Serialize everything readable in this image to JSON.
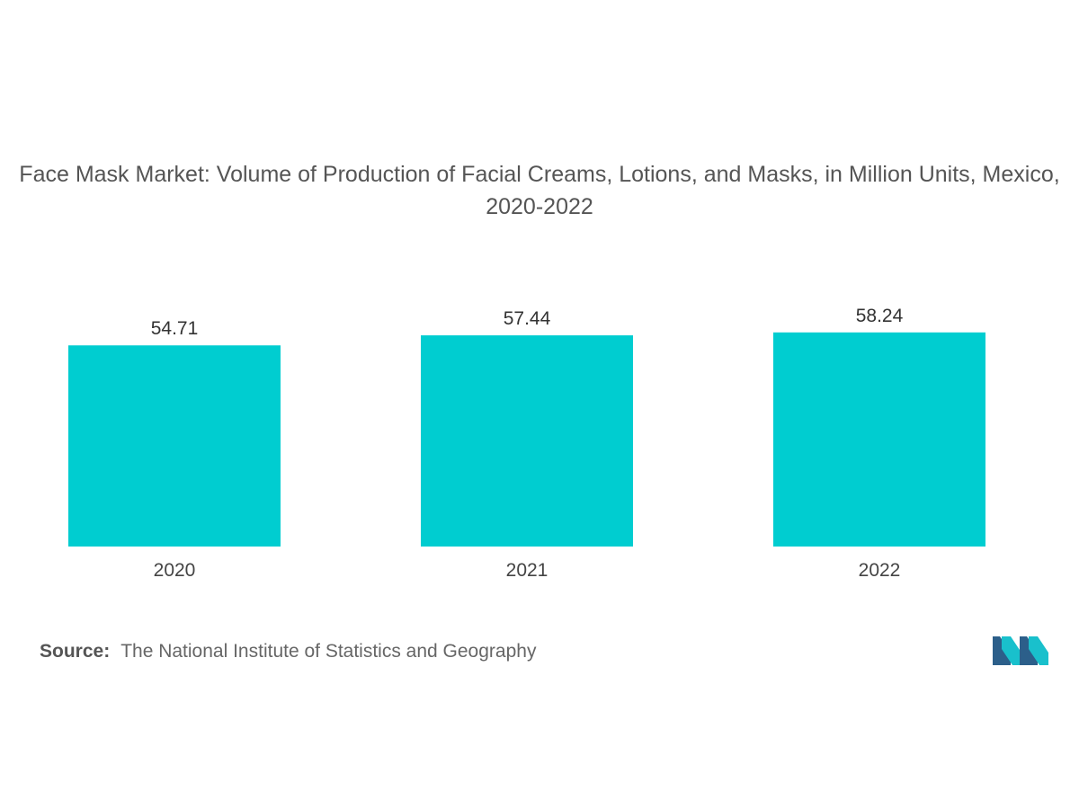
{
  "chart_data": {
    "type": "bar",
    "title": "Face Mask Market: Volume of Production of Facial Creams, Lotions, and Masks, in Million Units, Mexico, 2020-2022",
    "categories": [
      "2020",
      "2021",
      "2022"
    ],
    "values": [
      54.71,
      57.44,
      58.24
    ],
    "value_labels": [
      "54.71",
      "57.44",
      "58.24"
    ],
    "xlabel": "",
    "ylabel": "",
    "ylim": [
      0,
      59
    ],
    "grid": false,
    "legend": "none",
    "colors": {
      "bar": "#00CDD0"
    }
  },
  "source": {
    "label": "Source:",
    "text": "The National Institute of Statistics and Geography"
  },
  "logo": {
    "icon": "mordor-intelligence-logo",
    "colors": [
      "#2C5F8A",
      "#19C0CC"
    ]
  }
}
